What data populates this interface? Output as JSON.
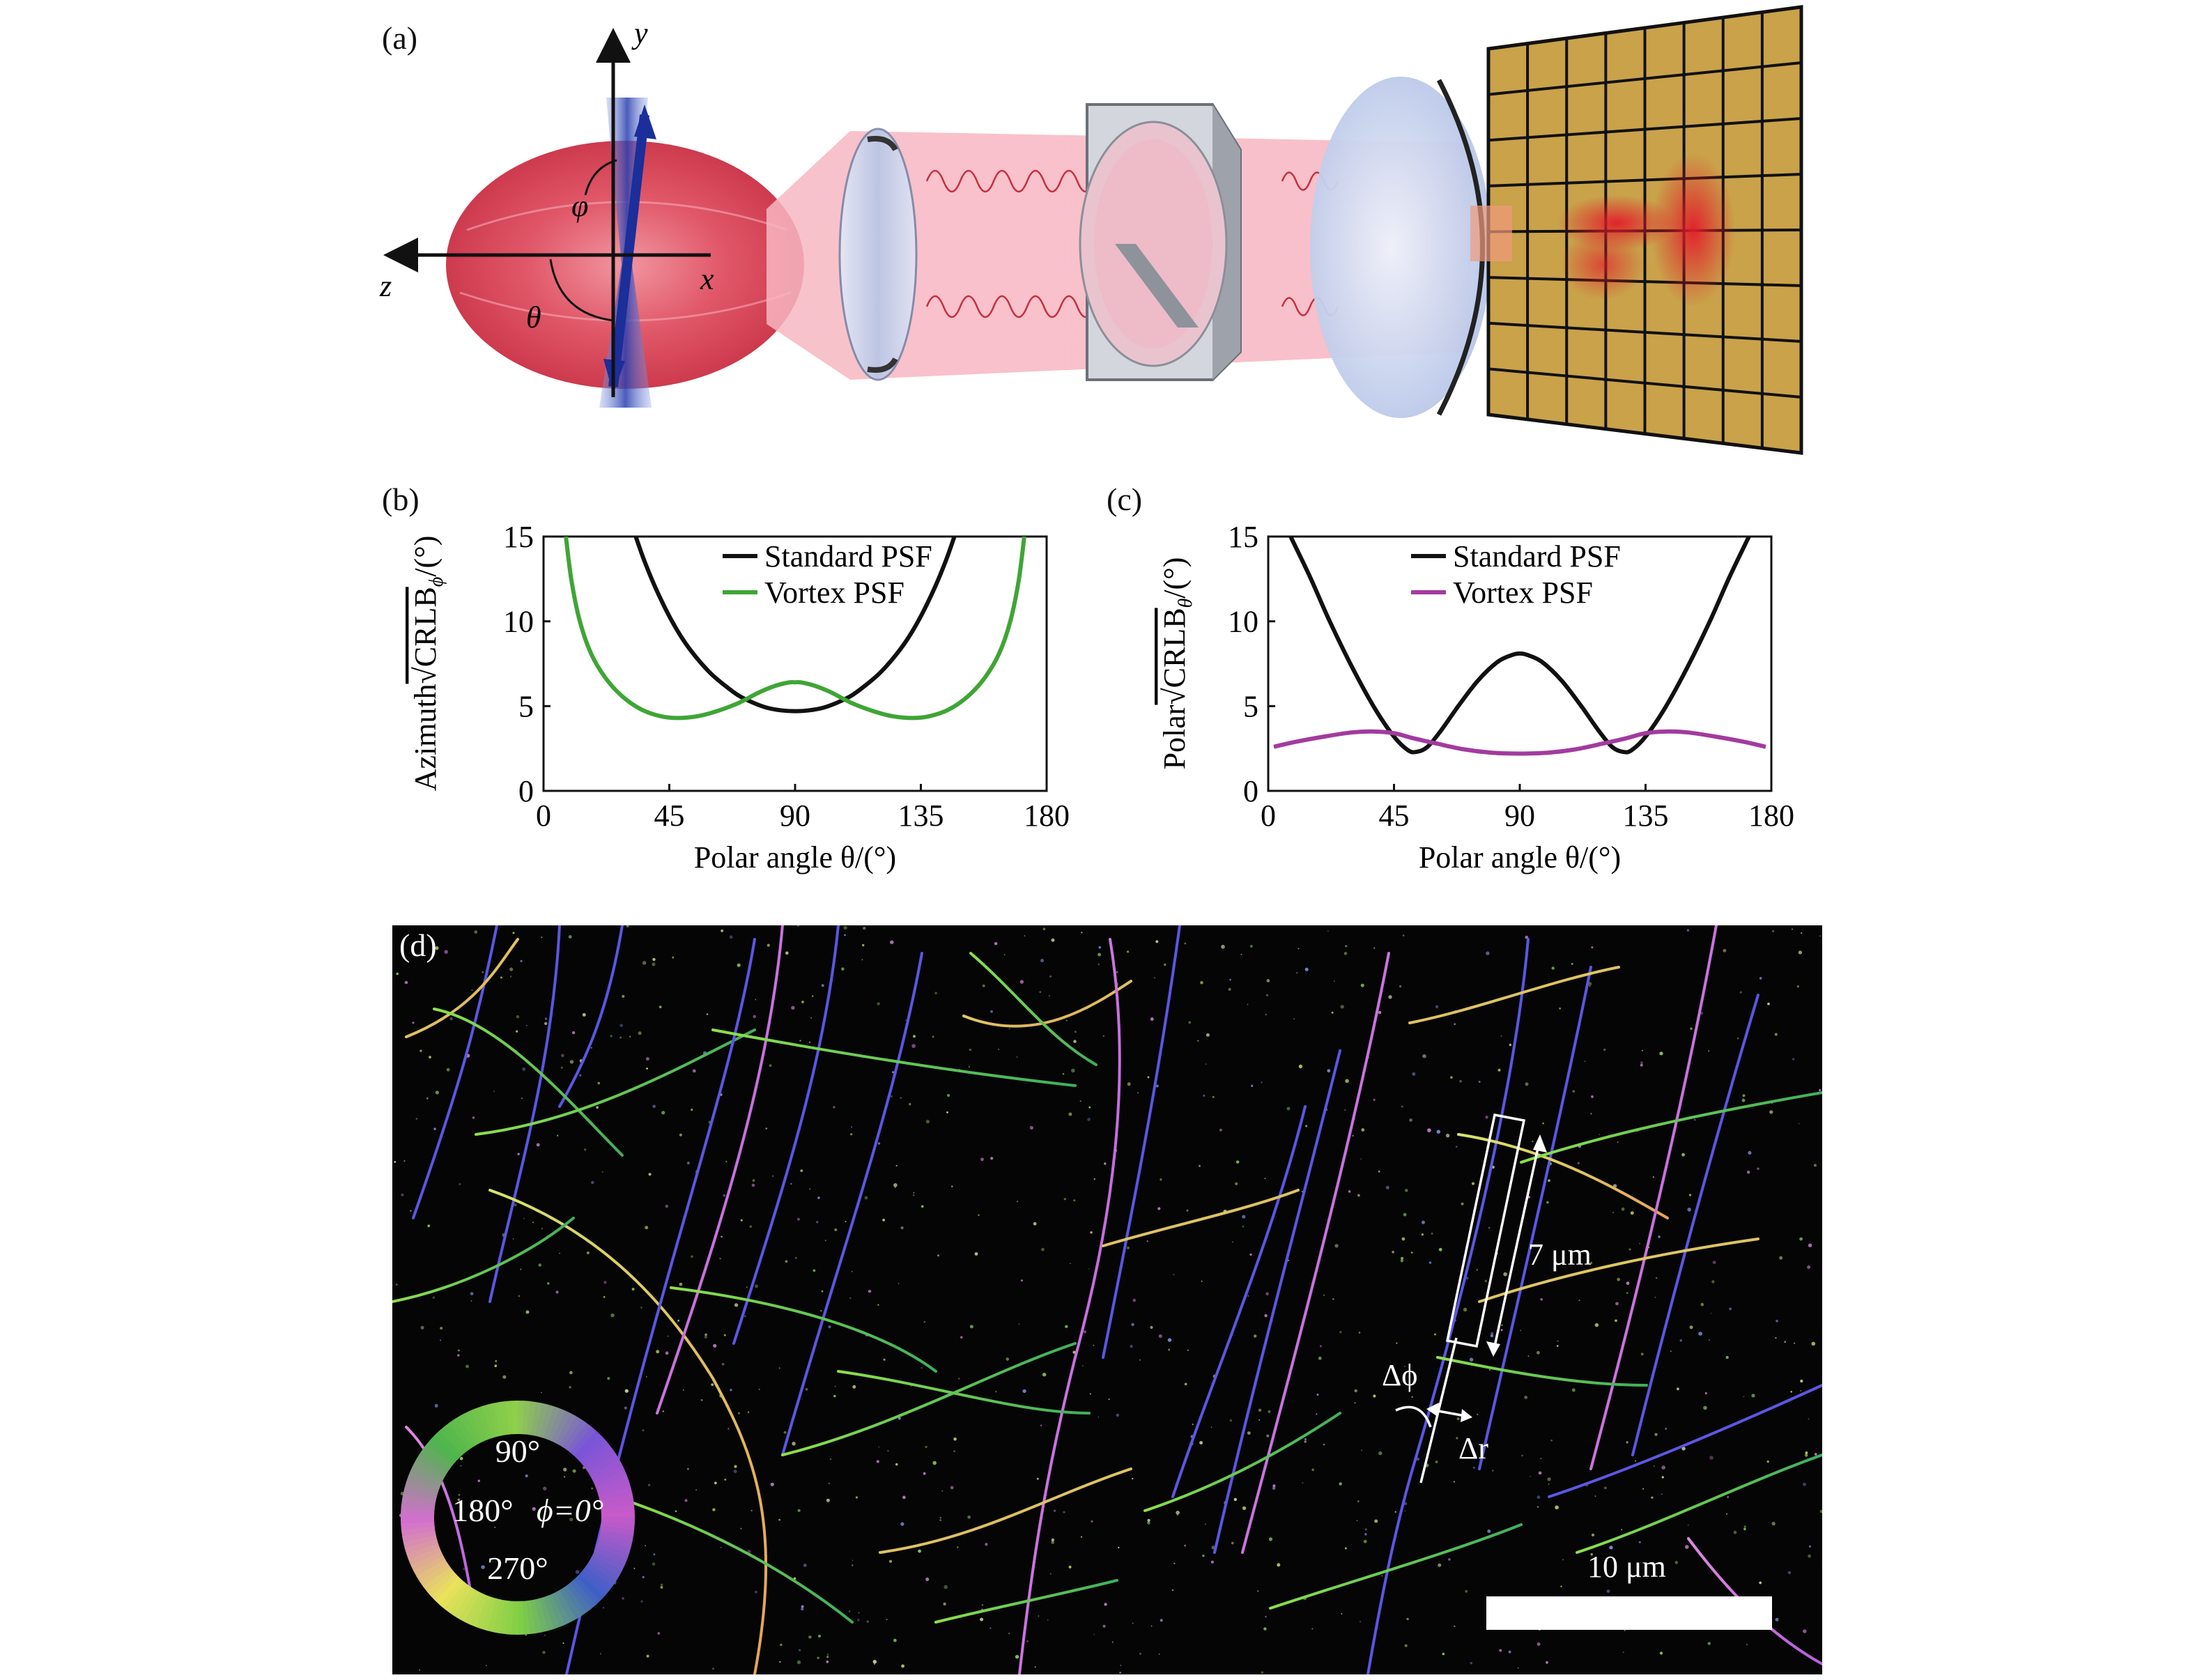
{
  "panel_a": {
    "label": "(a)",
    "axis_y": "y",
    "axis_z": "z",
    "axis_x": "x",
    "angle_phi": "φ",
    "angle_theta": "θ",
    "colors": {
      "emission": "#d9364a",
      "dipole": "#1d3aa8",
      "lens": "#c9d4ee",
      "camera": "#c9a24a"
    }
  },
  "panel_b": {
    "label": "(b)",
    "ylabel_prefix": "Azimuth",
    "ylabel_math": "√CRLB",
    "ylabel_sub": "ϕ",
    "ylabel_unit": "/(°)",
    "xlabel": "Polar angle θ/(°)",
    "legend": [
      "Standard PSF",
      "Vortex PSF"
    ]
  },
  "panel_c": {
    "label": "(c)",
    "ylabel_prefix": "Polar",
    "ylabel_math": "√CRLB",
    "ylabel_sub": "θ",
    "ylabel_unit": "/(°)",
    "xlabel": "Polar angle θ/(°)",
    "legend": [
      "Standard PSF",
      "Vortex PSF"
    ]
  },
  "panel_d": {
    "label": "(d)",
    "length_annotation": "7 μm",
    "delta_phi": "Δϕ",
    "delta_r": "Δr",
    "scalebar": "10 μm",
    "wheel_labels": {
      "top": "90°",
      "left": "180°",
      "right": "ϕ=0°",
      "bottom": "270°"
    }
  },
  "chart_data": [
    {
      "type": "line",
      "title": "",
      "xlabel": "Polar angle θ/(°)",
      "ylabel": "Azimuth √CRLB_ϕ/(°)",
      "xlim": [
        0,
        180
      ],
      "ylim": [
        0,
        15
      ],
      "xticks": [
        0,
        45,
        90,
        135,
        180
      ],
      "yticks": [
        0,
        5,
        10,
        15
      ],
      "legend_position": "top-right",
      "series": [
        {
          "name": "Standard PSF",
          "color": "#111111",
          "x": [
            33,
            36,
            40,
            45,
            50,
            55,
            60,
            65,
            70,
            75,
            80,
            85,
            90,
            95,
            100,
            105,
            110,
            115,
            120,
            125,
            130,
            135,
            140,
            144,
            147
          ],
          "y": [
            15,
            13.6,
            12.0,
            10.3,
            8.9,
            7.8,
            6.9,
            6.2,
            5.6,
            5.2,
            4.9,
            4.75,
            4.7,
            4.75,
            4.9,
            5.2,
            5.6,
            6.2,
            6.9,
            7.8,
            8.9,
            10.3,
            12.0,
            13.6,
            15
          ]
        },
        {
          "name": "Vortex PSF",
          "color": "#3fa535",
          "x": [
            8,
            10,
            13,
            17,
            22,
            28,
            35,
            42,
            48,
            55,
            62,
            70,
            77,
            83,
            88,
            90,
            92,
            97,
            103,
            110,
            118,
            125,
            132,
            138,
            145,
            152,
            158,
            163,
            167,
            170,
            172
          ],
          "y": [
            15,
            12.4,
            10.0,
            8.1,
            6.7,
            5.6,
            4.8,
            4.4,
            4.3,
            4.4,
            4.7,
            5.2,
            5.8,
            6.2,
            6.4,
            6.4,
            6.4,
            6.2,
            5.8,
            5.2,
            4.7,
            4.4,
            4.3,
            4.4,
            4.8,
            5.6,
            6.7,
            8.1,
            10.0,
            12.4,
            15
          ]
        }
      ]
    },
    {
      "type": "line",
      "title": "",
      "xlabel": "Polar angle θ/(°)",
      "ylabel": "Polar √CRLB_θ/(°)",
      "xlim": [
        0,
        180
      ],
      "ylim": [
        0,
        15
      ],
      "xticks": [
        0,
        45,
        90,
        135,
        180
      ],
      "yticks": [
        0,
        5,
        10,
        15
      ],
      "legend_position": "top-right",
      "series": [
        {
          "name": "Standard PSF",
          "color": "#111111",
          "x": [
            8,
            15,
            22,
            30,
            38,
            45,
            50,
            53,
            57,
            62,
            68,
            75,
            82,
            87,
            90,
            93,
            98,
            105,
            112,
            118,
            123,
            127,
            130,
            135,
            142,
            150,
            158,
            165,
            172
          ],
          "y": [
            15,
            12.6,
            10.0,
            7.3,
            4.9,
            3.2,
            2.4,
            2.3,
            2.6,
            3.6,
            5.0,
            6.5,
            7.6,
            8.0,
            8.1,
            8.0,
            7.6,
            6.5,
            5.0,
            3.6,
            2.6,
            2.3,
            2.4,
            3.2,
            4.9,
            7.3,
            10.0,
            12.6,
            15
          ]
        },
        {
          "name": "Vortex PSF",
          "color": "#a23b9e",
          "x": [
            2,
            10,
            20,
            30,
            38,
            45,
            52,
            60,
            70,
            80,
            90,
            100,
            110,
            120,
            128,
            135,
            142,
            150,
            160,
            170,
            178
          ],
          "y": [
            2.6,
            2.9,
            3.2,
            3.45,
            3.5,
            3.4,
            3.1,
            2.8,
            2.45,
            2.25,
            2.2,
            2.25,
            2.45,
            2.8,
            3.1,
            3.4,
            3.5,
            3.45,
            3.2,
            2.9,
            2.6
          ]
        }
      ]
    }
  ]
}
